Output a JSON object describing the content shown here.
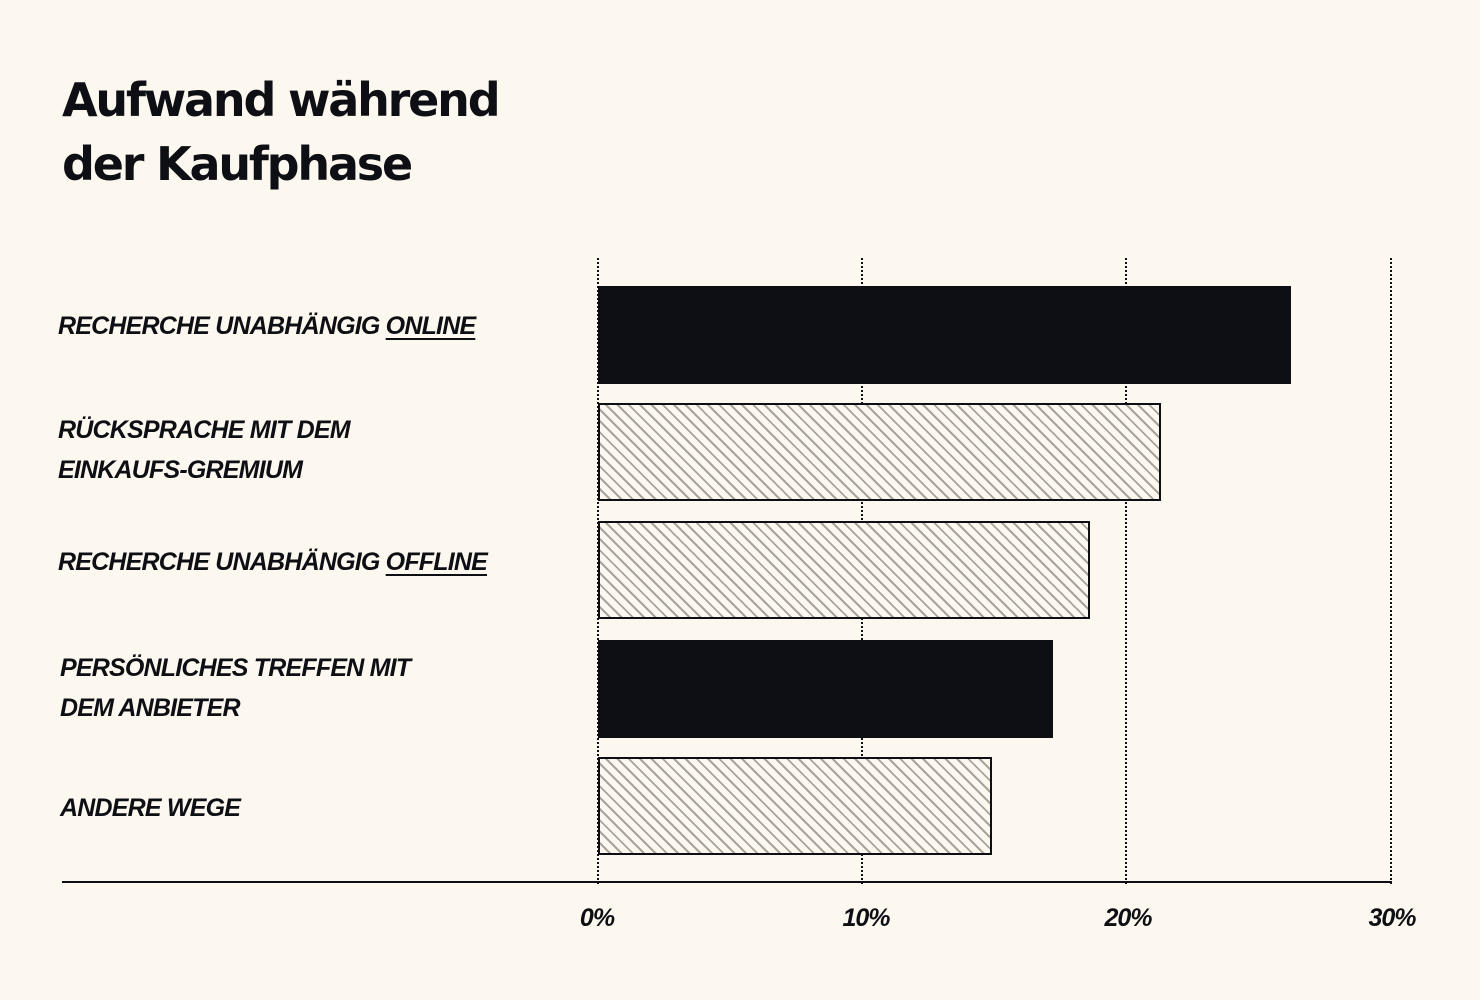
{
  "title": {
    "line1": "Aufwand während",
    "line2": "der Kaufphase"
  },
  "colors": {
    "background": "#fdf8ef",
    "ink": "#0e0f14",
    "hatch": "#a8a39b"
  },
  "labels": [
    {
      "line1_pre": "RECHERCHE UNABHÄNGIG ",
      "line1_u": "ONLINE",
      "line2": ""
    },
    {
      "line1_pre": "RÜCKSPRACHE MIT DEM",
      "line1_u": "",
      "line2": "EINKAUFS-GREMIUM"
    },
    {
      "line1_pre": "RECHERCHE UNABHÄNGIG ",
      "line1_u": "OFFLINE",
      "line2": ""
    },
    {
      "line1_pre": "PERSÖNLICHES TREFFEN MIT",
      "line1_u": "",
      "line2": "DEM ANBIETER"
    },
    {
      "line1_pre": "ANDERE WEGE",
      "line1_u": "",
      "line2": ""
    }
  ],
  "axis": {
    "ticks": [
      "0%",
      "10%",
      "20%",
      "30%"
    ]
  },
  "chart_data": {
    "type": "bar",
    "orientation": "horizontal",
    "title": "Aufwand während der Kaufphase",
    "categories": [
      "RECHERCHE UNABHÄNGIG ONLINE",
      "RÜCKSPRACHE MIT DEM EINKAUFS-GREMIUM",
      "RECHERCHE UNABHÄNGIG OFFLINE",
      "PERSÖNLICHES TREFFEN MIT DEM ANBIETER",
      "ANDERE WEGE"
    ],
    "values": [
      26.2,
      21.3,
      18.6,
      17.2,
      14.9
    ],
    "styles": [
      "solid",
      "hatched",
      "hatched",
      "solid",
      "hatched"
    ],
    "xlabel": "",
    "ylabel": "",
    "xlim": [
      0,
      30
    ],
    "x_ticks": [
      "0%",
      "10%",
      "20%",
      "30%"
    ],
    "grid": "vertical dotted",
    "legend": null
  }
}
